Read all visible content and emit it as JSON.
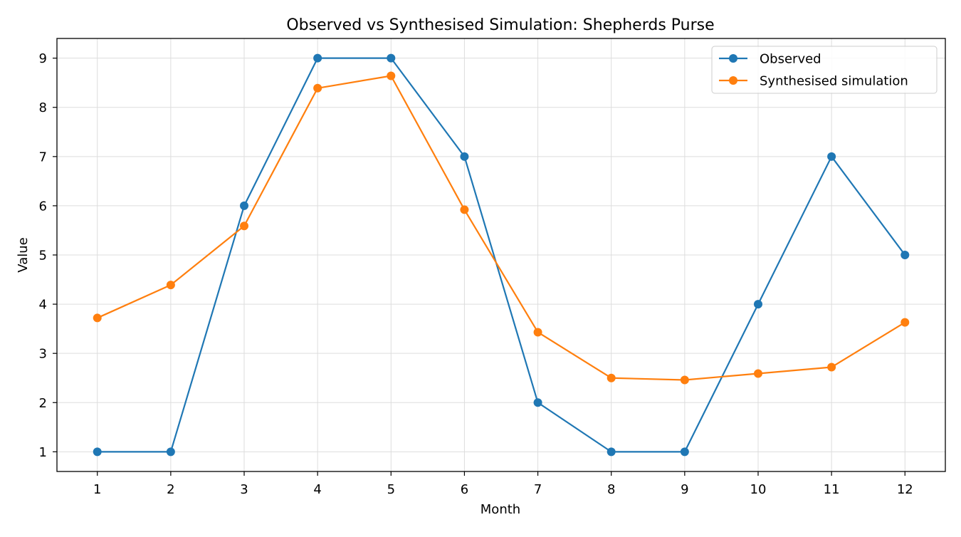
{
  "chart_data": {
    "type": "line",
    "title": "Observed vs Synthesised Simulation: Shepherds Purse",
    "xlabel": "Month",
    "ylabel": "Value",
    "x": [
      1,
      2,
      3,
      4,
      5,
      6,
      7,
      8,
      9,
      10,
      11,
      12
    ],
    "xlim": [
      0.45,
      12.55
    ],
    "ylim": [
      0.6,
      9.4
    ],
    "yticks": [
      1,
      2,
      3,
      4,
      5,
      6,
      7,
      8,
      9
    ],
    "grid": true,
    "legend_position": "top-right",
    "series": [
      {
        "name": "Observed",
        "color": "#1f77b4",
        "values": [
          1,
          1,
          6,
          9,
          9,
          7,
          2,
          1,
          1,
          4,
          7,
          5
        ]
      },
      {
        "name": "Synthesised simulation",
        "color": "#ff7f0e",
        "values": [
          3.72,
          4.39,
          5.59,
          8.39,
          8.64,
          5.92,
          3.43,
          2.5,
          2.46,
          2.59,
          2.72,
          3.63
        ]
      }
    ]
  }
}
